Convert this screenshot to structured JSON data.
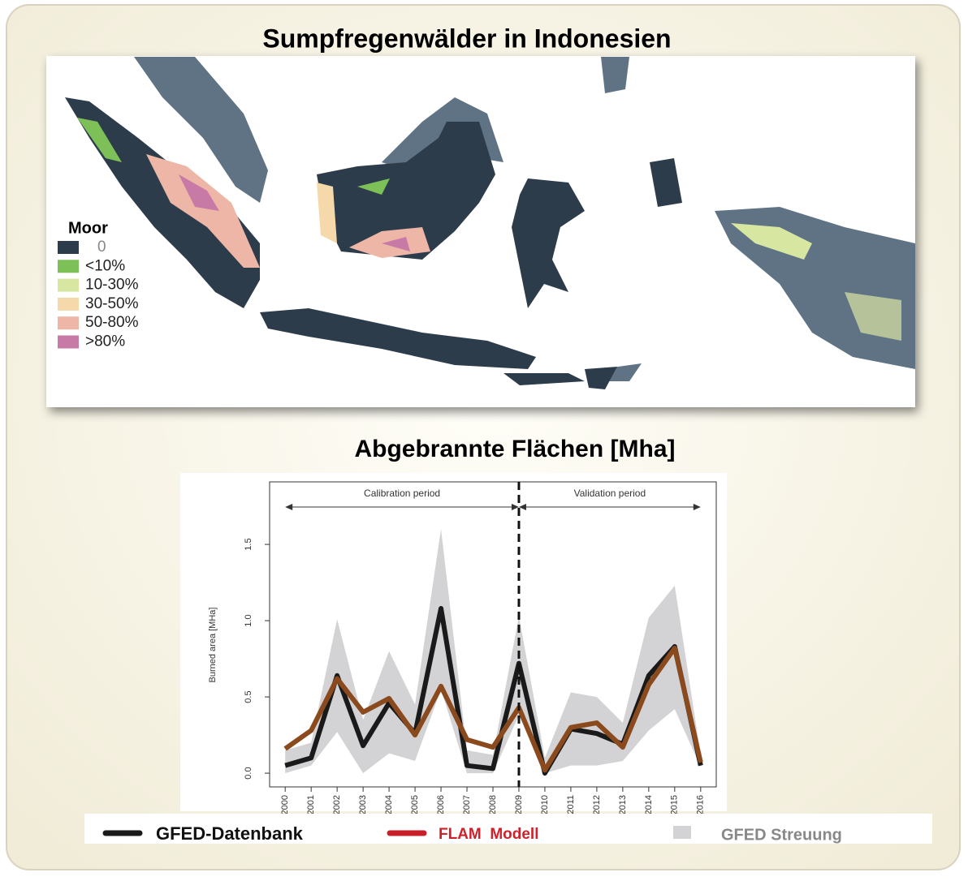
{
  "title": "Sumpfregenwälder in Indonesien",
  "map": {
    "legend_title": "Moor",
    "legend": [
      {
        "label": "0",
        "color": "#2d3c4b"
      },
      {
        "label": "<10%",
        "color": "#7cc057"
      },
      {
        "label": "10-30%",
        "color": "#d7e6a1"
      },
      {
        "label": "30-50%",
        "color": "#f6d9aa"
      },
      {
        "label": "50-80%",
        "color": "#eeb6a6"
      },
      {
        "label": ">80%",
        "color": "#c77aa6"
      }
    ]
  },
  "chart_data": {
    "type": "line",
    "title": "Abgebrannte Flächen [Mha]",
    "y_label": "Burned area [MHa]",
    "x": [
      2000,
      2001,
      2002,
      2003,
      2004,
      2005,
      2006,
      2007,
      2008,
      2009,
      2010,
      2011,
      2012,
      2013,
      2014,
      2015,
      2016
    ],
    "xlim": [
      1999.4,
      2016.6
    ],
    "ylim": [
      -0.09,
      1.91
    ],
    "yticks": [
      {
        "value": 0,
        "label": "0.0"
      },
      0.5,
      {
        "value": 1,
        "label": "1.0"
      },
      1.5
    ],
    "divider_x": 2009,
    "periods": [
      {
        "label": "Calibration period",
        "start": 2000,
        "end": 2009
      },
      {
        "label": "Validation period",
        "start": 2009,
        "end": 2016
      }
    ],
    "band": {
      "name": "GFED Streuung",
      "color": "#d3d3d5",
      "upper": [
        0.15,
        0.2,
        1.01,
        0.35,
        0.8,
        0.45,
        1.6,
        0.15,
        0.12,
        1.03,
        0.1,
        0.53,
        0.5,
        0.33,
        1.02,
        1.23,
        0.12
      ],
      "lower": [
        0.0,
        0.05,
        0.27,
        0.0,
        0.13,
        0.08,
        0.55,
        0.0,
        0.0,
        0.38,
        0.0,
        0.05,
        0.05,
        0.08,
        0.28,
        0.42,
        0.04
      ]
    },
    "series": [
      {
        "name": "GFED-Datenbank",
        "color": "#1a1a1a",
        "legend_color": "#1a1a1a",
        "values": [
          0.05,
          0.1,
          0.64,
          0.18,
          0.46,
          0.26,
          1.08,
          0.05,
          0.03,
          0.72,
          0.0,
          0.29,
          0.26,
          0.19,
          0.64,
          0.83,
          0.05
        ]
      },
      {
        "name": "FLAM  Modell",
        "color": "#8b4a1e",
        "legend_color": "#c8202a",
        "values": [
          0.16,
          0.28,
          0.62,
          0.4,
          0.49,
          0.25,
          0.57,
          0.22,
          0.17,
          0.43,
          0.02,
          0.3,
          0.33,
          0.17,
          0.58,
          0.82,
          0.07
        ]
      }
    ]
  }
}
